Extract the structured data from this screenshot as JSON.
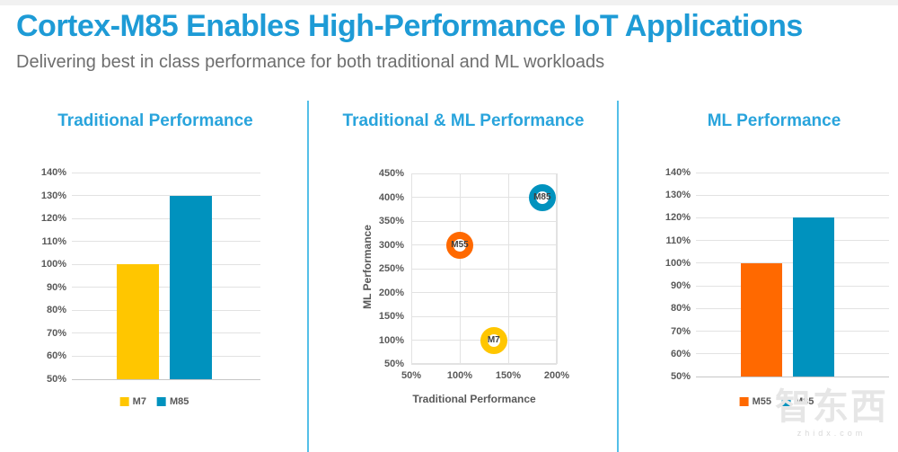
{
  "header": {
    "title": "Cortex-M85 Enables High-Performance IoT Applications",
    "subtitle": "Delivering best in class performance for both traditional and ML workloads"
  },
  "colors": {
    "title_blue": "#1E9BD6",
    "chart_title_blue": "#29A4DC",
    "divider_blue": "#54BFE8",
    "subtitle_gray": "#6E6E6E",
    "yellow": "#FFC600",
    "blue": "#0092BE",
    "orange": "#FF6900",
    "axis_text": "#595959",
    "gridline": "#E2E2E2",
    "baseline": "#C6C6C6",
    "marker_label": "#3F3F3F",
    "watermark": "#E6E6E6",
    "watermark_sub": "#D8D8D8"
  },
  "watermark": {
    "text": "智东西",
    "sub": "zhidx.com"
  },
  "chart_data": [
    {
      "type": "bar",
      "title": "Traditional Performance",
      "categories": [
        "M7",
        "M85"
      ],
      "values": [
        100,
        130
      ],
      "bar_colors": [
        "#FFC600",
        "#0092BE"
      ],
      "ylim": [
        50,
        140
      ],
      "yticks": [
        50,
        60,
        70,
        80,
        90,
        100,
        110,
        120,
        130,
        140
      ],
      "ytick_suffix": "%",
      "grid": true,
      "legend_position": "bottom",
      "legend": [
        {
          "label": "M7",
          "color": "#FFC600"
        },
        {
          "label": "M85",
          "color": "#0092BE"
        }
      ]
    },
    {
      "type": "scatter",
      "title": "Traditional & ML Performance",
      "xlabel": "Traditional Performance",
      "ylabel": "ML Performance",
      "xlim": [
        50,
        200
      ],
      "ylim": [
        50,
        450
      ],
      "xticks": [
        50,
        100,
        150,
        200
      ],
      "yticks": [
        50,
        100,
        150,
        200,
        250,
        300,
        350,
        400,
        450
      ],
      "xtick_suffix": "%",
      "ytick_suffix": "%",
      "grid": true,
      "points": [
        {
          "label": "M55",
          "x": 100,
          "y": 300,
          "color": "#FF6900"
        },
        {
          "label": "M7",
          "x": 135,
          "y": 100,
          "color": "#FFC600"
        },
        {
          "label": "M85",
          "x": 185,
          "y": 400,
          "color": "#0092BE"
        }
      ]
    },
    {
      "type": "bar",
      "title": "ML Performance",
      "categories": [
        "M55",
        "M85"
      ],
      "values": [
        100,
        120
      ],
      "bar_colors": [
        "#FF6900",
        "#0092BE"
      ],
      "ylim": [
        50,
        140
      ],
      "yticks": [
        50,
        60,
        70,
        80,
        90,
        100,
        110,
        120,
        130,
        140
      ],
      "ytick_suffix": "%",
      "grid": true,
      "legend_position": "bottom",
      "legend": [
        {
          "label": "M55",
          "color": "#FF6900"
        },
        {
          "label": "M85",
          "color": "#0092BE"
        }
      ]
    }
  ]
}
